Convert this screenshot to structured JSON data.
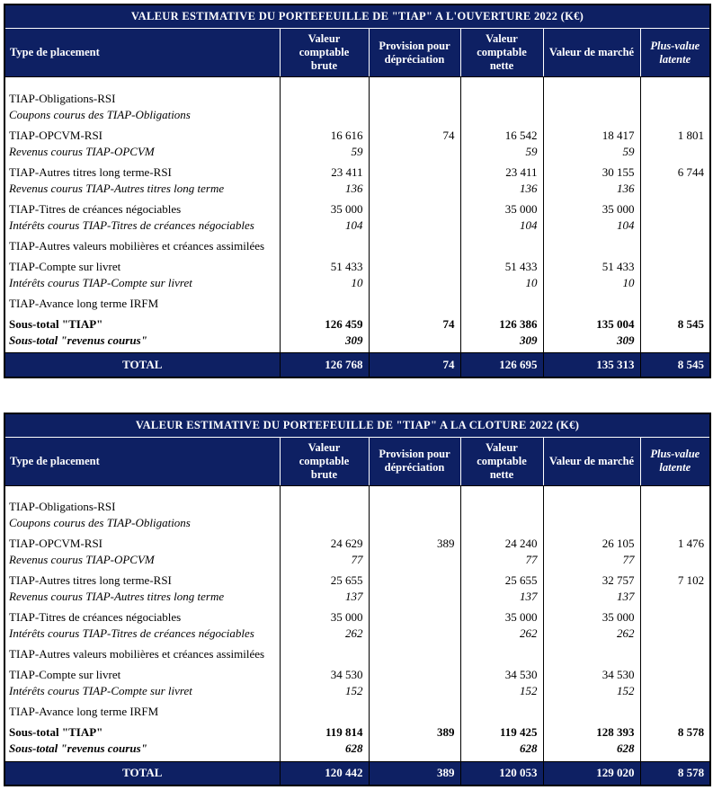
{
  "colors": {
    "header_bg": "#0e2063",
    "header_text": "#ffffff"
  },
  "tables": [
    {
      "id": "ouverture",
      "title": "VALEUR ESTIMATIVE DU PORTEFEUILLE DE \"TIAP\" A L'OUVERTURE 2022 (K€)",
      "columns": [
        {
          "label": "Type de placement"
        },
        {
          "label": "Valeur comptable brute"
        },
        {
          "label": "Provision pour dépréciation"
        },
        {
          "label": "Valeur comptable nette"
        },
        {
          "label": "Valeur de marché"
        },
        {
          "label": "Plus-value latente",
          "italic": true
        }
      ],
      "rows": [
        {
          "label": "TIAP-Obligations-RSI",
          "style": "normal",
          "spacer_before": true,
          "values": [
            "",
            "",
            "",
            "",
            ""
          ]
        },
        {
          "label": "Coupons courus des TIAP-Obligations",
          "style": "italic",
          "values": [
            "",
            "",
            "",
            "",
            ""
          ]
        },
        {
          "label": "TIAP-OPCVM-RSI",
          "style": "normal",
          "spacer_before": true,
          "values": [
            "16 616",
            "74",
            "16 542",
            "18 417",
            "1 801"
          ]
        },
        {
          "label": "Revenus courus TIAP-OPCVM",
          "style": "italic",
          "values": [
            "59",
            "",
            "59",
            "59",
            ""
          ]
        },
        {
          "label": "TIAP-Autres titres long terme-RSI",
          "style": "normal",
          "spacer_before": true,
          "values": [
            "23 411",
            "",
            "23 411",
            "30 155",
            "6 744"
          ]
        },
        {
          "label": "Revenus courus TIAP-Autres titres long terme",
          "style": "italic",
          "values": [
            "136",
            "",
            "136",
            "136",
            ""
          ]
        },
        {
          "label": "TIAP-Titres de créances négociables",
          "style": "normal",
          "spacer_before": true,
          "values": [
            "35 000",
            "",
            "35 000",
            "35 000",
            ""
          ]
        },
        {
          "label": "Intérêts courus TIAP-Titres de créances négociables",
          "style": "italic",
          "values": [
            "104",
            "",
            "104",
            "104",
            ""
          ]
        },
        {
          "label": "TIAP-Autres valeurs mobilières et créances assimilées",
          "style": "normal",
          "spacer_before": true,
          "values": [
            "",
            "",
            "",
            "",
            ""
          ]
        },
        {
          "label": "TIAP-Compte sur livret",
          "style": "normal",
          "spacer_before": true,
          "values": [
            "51 433",
            "",
            "51 433",
            "51 433",
            ""
          ]
        },
        {
          "label": "Intérêts courus TIAP-Compte sur livret",
          "style": "italic",
          "values": [
            "10",
            "",
            "10",
            "10",
            ""
          ]
        },
        {
          "label": "TIAP-Avance long terme IRFM",
          "style": "normal",
          "spacer_before": true,
          "values": [
            "",
            "",
            "",
            "",
            ""
          ]
        },
        {
          "label": "Sous-total \"TIAP\"",
          "style": "bold",
          "spacer_before": true,
          "values": [
            "126 459",
            "74",
            "126 386",
            "135 004",
            "8 545"
          ]
        },
        {
          "label": "Sous-total \"revenus courus\"",
          "style": "bold-italic",
          "values": [
            "309",
            "",
            "309",
            "309",
            ""
          ]
        }
      ],
      "total_row": {
        "label": "TOTAL",
        "values": [
          "126 768",
          "74",
          "126 695",
          "135 313",
          "8 545"
        ]
      }
    },
    {
      "id": "cloture",
      "title": "VALEUR ESTIMATIVE DU PORTEFEUILLE DE \"TIAP\" A LA CLOTURE 2022 (K€)",
      "columns": [
        {
          "label": "Type de placement"
        },
        {
          "label": "Valeur comptable brute"
        },
        {
          "label": "Provision pour dépréciation"
        },
        {
          "label": "Valeur comptable nette"
        },
        {
          "label": "Valeur de marché"
        },
        {
          "label": "Plus-value latente",
          "italic": true
        }
      ],
      "rows": [
        {
          "label": "TIAP-Obligations-RSI",
          "style": "normal",
          "spacer_before": true,
          "values": [
            "",
            "",
            "",
            "",
            ""
          ]
        },
        {
          "label": "Coupons courus des TIAP-Obligations",
          "style": "italic",
          "values": [
            "",
            "",
            "",
            "",
            ""
          ]
        },
        {
          "label": "TIAP-OPCVM-RSI",
          "style": "normal",
          "spacer_before": true,
          "values": [
            "24 629",
            "389",
            "24 240",
            "26 105",
            "1 476"
          ]
        },
        {
          "label": "Revenus courus TIAP-OPCVM",
          "style": "italic",
          "values": [
            "77",
            "",
            "77",
            "77",
            ""
          ]
        },
        {
          "label": "TIAP-Autres titres long terme-RSI",
          "style": "normal",
          "spacer_before": true,
          "values": [
            "25 655",
            "",
            "25 655",
            "32 757",
            "7 102"
          ]
        },
        {
          "label": "Revenus courus TIAP-Autres titres long terme",
          "style": "italic",
          "values": [
            "137",
            "",
            "137",
            "137",
            ""
          ]
        },
        {
          "label": "TIAP-Titres de créances négociables",
          "style": "normal",
          "spacer_before": true,
          "values": [
            "35 000",
            "",
            "35 000",
            "35 000",
            ""
          ]
        },
        {
          "label": "Intérêts courus TIAP-Titres de créances négociables",
          "style": "italic",
          "values": [
            "262",
            "",
            "262",
            "262",
            ""
          ]
        },
        {
          "label": "TIAP-Autres valeurs mobilières et créances assimilées",
          "style": "normal",
          "spacer_before": true,
          "values": [
            "",
            "",
            "",
            "",
            ""
          ]
        },
        {
          "label": "TIAP-Compte sur livret",
          "style": "normal",
          "spacer_before": true,
          "values": [
            "34 530",
            "",
            "34 530",
            "34 530",
            ""
          ]
        },
        {
          "label": "Intérêts courus TIAP-Compte sur livret",
          "style": "italic",
          "values": [
            "152",
            "",
            "152",
            "152",
            ""
          ]
        },
        {
          "label": "TIAP-Avance long terme IRFM",
          "style": "normal",
          "spacer_before": true,
          "values": [
            "",
            "",
            "",
            "",
            ""
          ]
        },
        {
          "label": "Sous-total \"TIAP\"",
          "style": "bold",
          "spacer_before": true,
          "values": [
            "119 814",
            "389",
            "119 425",
            "128 393",
            "8 578"
          ]
        },
        {
          "label": "Sous-total \"revenus courus\"",
          "style": "bold-italic",
          "values": [
            "628",
            "",
            "628",
            "628",
            ""
          ]
        }
      ],
      "total_row": {
        "label": "TOTAL",
        "values": [
          "120 442",
          "389",
          "120 053",
          "129 020",
          "8 578"
        ]
      }
    }
  ]
}
